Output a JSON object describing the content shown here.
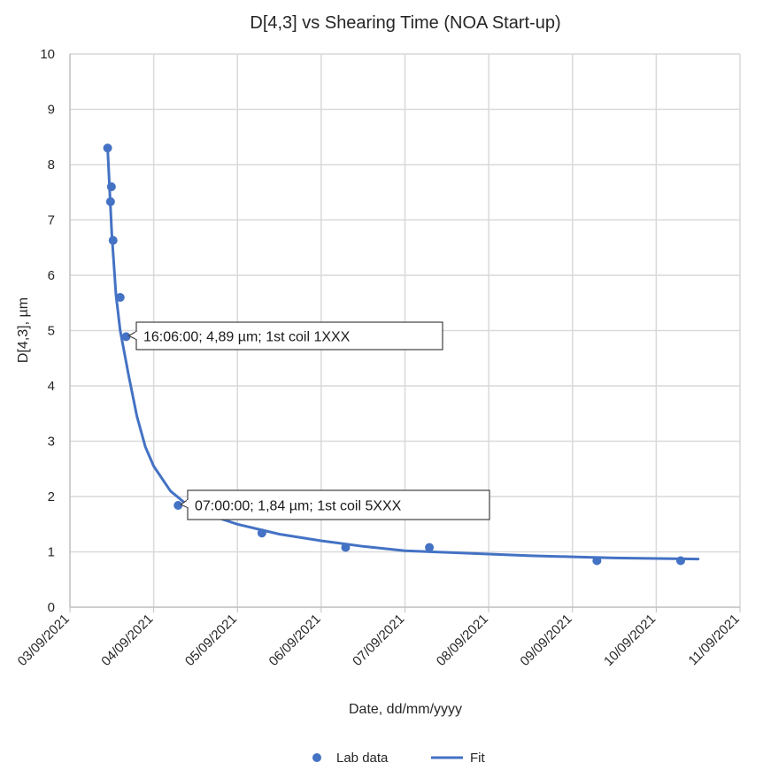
{
  "chart_data": {
    "type": "scatter",
    "title": "D[4,3] vs Shearing Time (NOA Start-up)",
    "xlabel": "Date,  dd/mm/yyyy",
    "ylabel": "D[4,3], µm",
    "x_ticks": [
      "03/09/2021",
      "04/09/2021",
      "05/09/2021",
      "06/09/2021",
      "07/09/2021",
      "08/09/2021",
      "09/09/2021",
      "10/09/2021",
      "11/09/2021"
    ],
    "xlim": [
      "03/09/2021 00:00",
      "11/09/2021 00:00"
    ],
    "ylim": [
      0,
      10
    ],
    "y_ticks": [
      0,
      1,
      2,
      3,
      4,
      5,
      6,
      7,
      8,
      9,
      10
    ],
    "grid": true,
    "legend_position": "bottom",
    "colors": {
      "series": "#4472C4",
      "grid": "#d9d9d9",
      "axis": "#bfbfbf"
    },
    "series": [
      {
        "name": "Lab data",
        "kind": "scatter",
        "points": [
          {
            "x": "03/09/2021 10:48",
            "y": 8.3
          },
          {
            "x": "03/09/2021 11:53",
            "y": 7.6
          },
          {
            "x": "03/09/2021 11:38",
            "y": 7.33
          },
          {
            "x": "03/09/2021 12:22",
            "y": 6.63
          },
          {
            "x": "03/09/2021 14:24",
            "y": 5.6
          },
          {
            "x": "03/09/2021 16:06",
            "y": 4.89
          },
          {
            "x": "04/09/2021 07:00",
            "y": 1.84
          },
          {
            "x": "05/09/2021 07:00",
            "y": 1.34
          },
          {
            "x": "06/09/2021 07:00",
            "y": 1.08
          },
          {
            "x": "07/09/2021 07:00",
            "y": 1.08
          },
          {
            "x": "09/09/2021 07:00",
            "y": 0.84
          },
          {
            "x": "10/09/2021 07:00",
            "y": 0.84
          }
        ]
      },
      {
        "name": "Fit",
        "kind": "line",
        "points": [
          {
            "x": "03/09/2021 10:48",
            "y": 8.3
          },
          {
            "x": "03/09/2021 12:00",
            "y": 6.75
          },
          {
            "x": "03/09/2021 13:12",
            "y": 5.65
          },
          {
            "x": "03/09/2021 14:24",
            "y": 5.0
          },
          {
            "x": "03/09/2021 16:48",
            "y": 4.2
          },
          {
            "x": "03/09/2021 19:12",
            "y": 3.45
          },
          {
            "x": "03/09/2021 21:36",
            "y": 2.9
          },
          {
            "x": "04/09/2021 00:00",
            "y": 2.55
          },
          {
            "x": "04/09/2021 04:48",
            "y": 2.1
          },
          {
            "x": "04/09/2021 09:36",
            "y": 1.85
          },
          {
            "x": "04/09/2021 14:24",
            "y": 1.7
          },
          {
            "x": "05/09/2021 00:00",
            "y": 1.5
          },
          {
            "x": "05/09/2021 12:00",
            "y": 1.32
          },
          {
            "x": "06/09/2021 00:00",
            "y": 1.2
          },
          {
            "x": "06/09/2021 12:00",
            "y": 1.1
          },
          {
            "x": "07/09/2021 00:00",
            "y": 1.02
          },
          {
            "x": "07/09/2021 12:00",
            "y": 0.99
          },
          {
            "x": "08/09/2021 00:00",
            "y": 0.96
          },
          {
            "x": "08/09/2021 12:00",
            "y": 0.93
          },
          {
            "x": "09/09/2021 00:00",
            "y": 0.91
          },
          {
            "x": "09/09/2021 12:00",
            "y": 0.89
          },
          {
            "x": "10/09/2021 00:00",
            "y": 0.88
          },
          {
            "x": "10/09/2021 12:00",
            "y": 0.87
          }
        ]
      }
    ],
    "annotations": [
      {
        "text": "16:06:00; 4,89 µm; 1st coil 1XXX",
        "x": "03/09/2021 16:06",
        "y": 4.89
      },
      {
        "text": "07:00:00; 1,84 µm; 1st coil 5XXX",
        "x": "04/09/2021 07:00",
        "y": 1.84
      }
    ]
  }
}
